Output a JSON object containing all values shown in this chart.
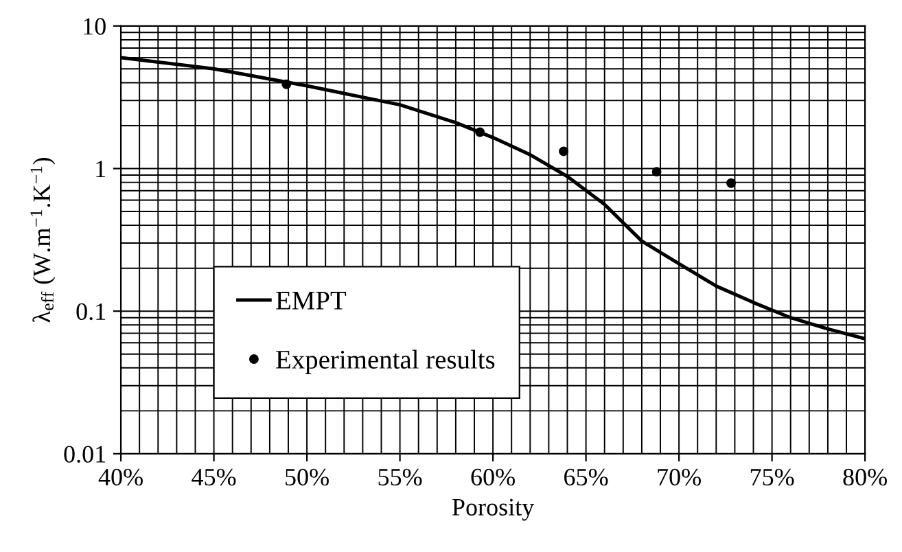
{
  "chart_data": {
    "type": "line",
    "xlabel": "Porosity",
    "ylabel": "λ$_{eff}$ (W.m$^{−1}$.K$^{−1}$)",
    "log": "y",
    "grid": true,
    "legend": "bottom left",
    "xlim": [
      40,
      80
    ],
    "xticks": [
      {
        "value": 40,
        "label": "40%"
      },
      {
        "value": 45,
        "label": "45%"
      },
      {
        "value": 50,
        "label": "50%"
      },
      {
        "value": 55,
        "label": "55%"
      },
      {
        "value": 60,
        "label": "60%"
      },
      {
        "value": 65,
        "label": "65%"
      },
      {
        "value": 70,
        "label": "70%"
      },
      {
        "value": 75,
        "label": "75%"
      },
      {
        "value": 80,
        "label": "80%"
      }
    ],
    "ylim": [
      0.01,
      10
    ],
    "yticks": [
      0.01,
      0.1,
      1,
      10
    ],
    "series": [
      {
        "name": "EMPT",
        "color": "#000000",
        "line_style": "solid",
        "marker": "none",
        "x": [
          40,
          45,
          50,
          55,
          58,
          60,
          62,
          64,
          66,
          68,
          70,
          72,
          74,
          76,
          78,
          80
        ],
        "values": [
          6.0,
          5.0,
          3.8,
          2.8,
          2.1,
          1.65,
          1.25,
          0.88,
          0.56,
          0.31,
          0.215,
          0.15,
          0.115,
          0.09,
          0.075,
          0.064
        ]
      },
      {
        "name": "Experimental results",
        "type": "scatter",
        "color": "#000000",
        "marker": "circle",
        "x": [
          48.9,
          59.3,
          63.8,
          68.8,
          72.8
        ],
        "values": [
          3.9,
          1.8,
          1.32,
          0.95,
          0.79
        ]
      }
    ]
  }
}
